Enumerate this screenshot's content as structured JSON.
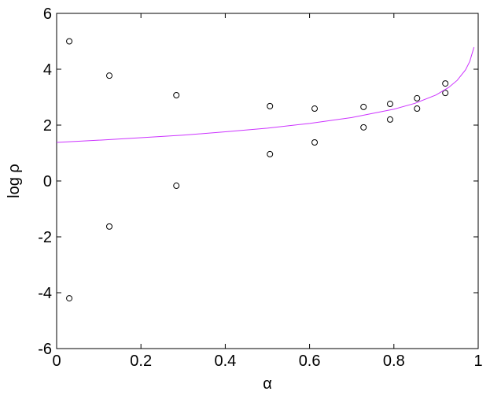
{
  "chart_data": {
    "type": "scatter",
    "x_label": "α",
    "y_label": "log ρ",
    "xlim": [
      0,
      1
    ],
    "ylim": [
      -6,
      6
    ],
    "xticks": [
      0,
      0.2,
      0.4,
      0.6,
      0.8,
      1
    ],
    "yticks": [
      -6,
      -4,
      -2,
      0,
      2,
      4,
      6
    ],
    "series": [
      {
        "type": "scatter",
        "color": "#000000",
        "x": [
          0.03,
          0.03,
          0.125,
          0.125,
          0.284,
          0.284,
          0.506,
          0.506,
          0.612,
          0.612,
          0.728,
          0.728,
          0.791,
          0.791,
          0.855,
          0.855,
          0.922,
          0.922
        ],
        "values": [
          5.0,
          -4.2,
          3.77,
          -1.63,
          3.07,
          -0.17,
          2.68,
          0.96,
          2.59,
          1.38,
          2.65,
          1.92,
          2.76,
          2.2,
          2.96,
          2.59,
          3.49,
          3.15
        ]
      },
      {
        "type": "line",
        "color": "#cc33ff",
        "x": [
          0,
          0.1,
          0.2,
          0.3,
          0.4,
          0.5,
          0.6,
          0.7,
          0.8,
          0.85,
          0.9,
          0.93,
          0.95,
          0.97,
          0.98,
          0.99
        ],
        "values": [
          1.38,
          1.46,
          1.55,
          1.64,
          1.76,
          1.89,
          2.06,
          2.27,
          2.57,
          2.78,
          3.08,
          3.35,
          3.6,
          3.98,
          4.28,
          4.79
        ]
      }
    ]
  }
}
